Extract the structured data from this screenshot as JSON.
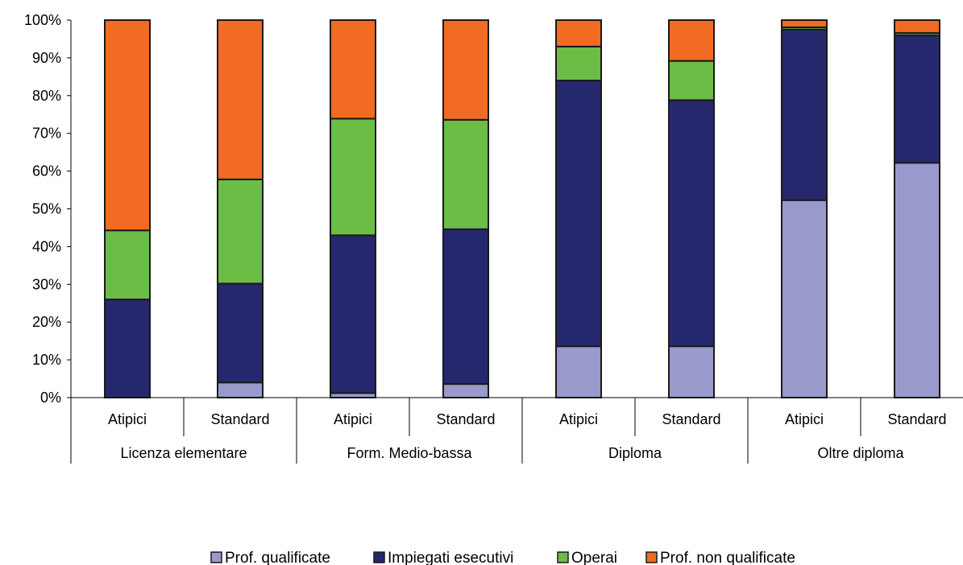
{
  "chart_data": {
    "type": "bar",
    "stacked": true,
    "percent": true,
    "ylim": [
      0,
      100
    ],
    "yticks": [
      "0%",
      "10%",
      "20%",
      "30%",
      "40%",
      "50%",
      "60%",
      "70%",
      "80%",
      "90%",
      "100%"
    ],
    "groups": [
      "Licenza elementare",
      "Form. Medio-bassa",
      "Diploma",
      "Oltre diploma"
    ],
    "categories": [
      "Atipici",
      "Standard",
      "Atipici",
      "Standard",
      "Atipici",
      "Standard",
      "Atipici",
      "Standard"
    ],
    "series": [
      {
        "name": "Prof. qualificate",
        "color": "#9999cc",
        "values": [
          0,
          4,
          1.2,
          3.6,
          13.6,
          13.6,
          52.3,
          62.2
        ]
      },
      {
        "name": "Impiegati esecutivi",
        "color": "#26286e",
        "values": [
          26,
          26.2,
          41.8,
          41,
          70.4,
          65.2,
          45.2,
          33.8
        ]
      },
      {
        "name": "Operai",
        "color": "#6bbd45",
        "values": [
          18.3,
          27.6,
          30.9,
          29,
          9,
          10.4,
          0.6,
          0.6
        ]
      },
      {
        "name": "Prof. non qualificate",
        "color": "#f26b22",
        "values": [
          55.7,
          42.2,
          26.1,
          26.4,
          7,
          10.8,
          1.9,
          3.4
        ]
      }
    ],
    "legend_position": "bottom",
    "grid": false
  }
}
